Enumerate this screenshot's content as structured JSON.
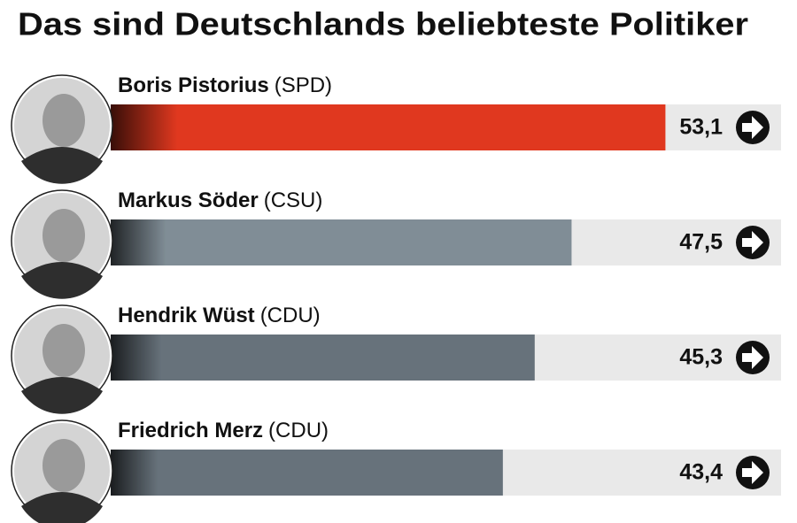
{
  "chart_data": {
    "type": "bar",
    "orientation": "horizontal",
    "title": "Das sind Deutschlands beliebteste Politiker",
    "categories": [
      "Boris Pistorius",
      "Markus Söder",
      "Hendrik Wüst",
      "Friedrich Merz"
    ],
    "parties": [
      "(SPD)",
      "(CSU)",
      "(CDU)",
      "(CDU)"
    ],
    "values": [
      53.1,
      47.5,
      45.3,
      43.4
    ],
    "value_labels": [
      "53,1",
      "47,5",
      "45,3",
      "43,4"
    ],
    "colors": [
      "#e0381f",
      "#808d96",
      "#67727b",
      "#67727b"
    ],
    "track_color": "#e9e9e9",
    "xlim": [
      20,
      60
    ]
  }
}
